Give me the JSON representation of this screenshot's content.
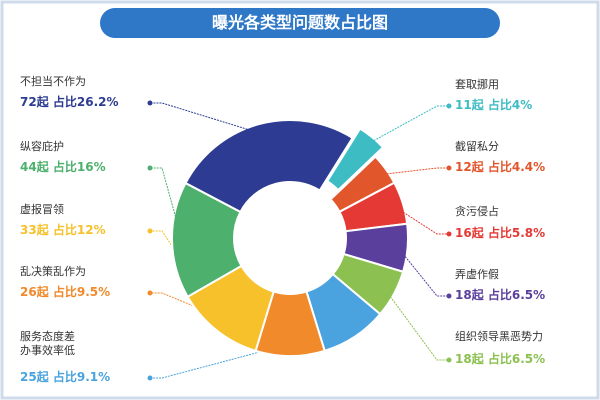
{
  "chart_data": {
    "type": "pie",
    "title": "曝光各类型问题数占比图",
    "categories": [
      "套取挪用",
      "截留私分",
      "贪污侵占",
      "弄虚作假",
      "组织领导黑恶势力",
      "服务态度差\n办事效率低",
      "乱决策乱作为",
      "虚报冒领",
      "纵容庇护",
      "不担当不作为"
    ],
    "values": [
      11,
      12,
      16,
      18,
      18,
      25,
      26,
      33,
      44,
      72
    ],
    "value_labels": [
      "11起 占比4%",
      "12起 占比4.4%",
      "16起 占比5.8%",
      "18起 占比6.5%",
      "18起 占比6.5%",
      "25起 占比9.1%",
      "26起 占比9.5%",
      "33起 占比12%",
      "44起 占比16%",
      "72起 占比26.2%"
    ],
    "colors": [
      "#3dbcc4",
      "#e2562c",
      "#e53935",
      "#5b3f9c",
      "#8cc152",
      "#4aa3de",
      "#f08a2a",
      "#f6c12a",
      "#4db06d",
      "#2d3c92"
    ]
  }
}
